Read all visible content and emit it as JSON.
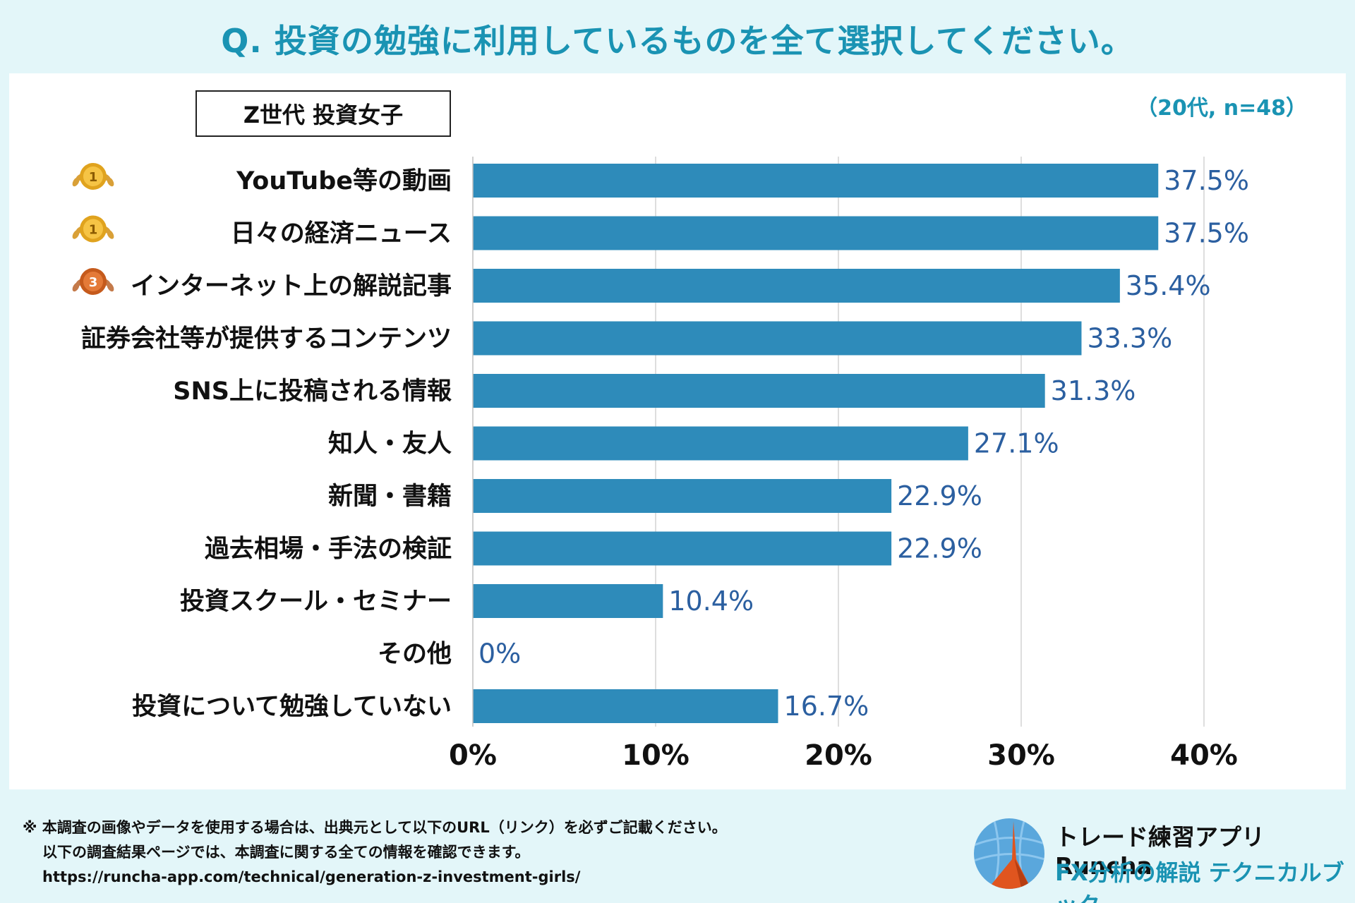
{
  "header": {
    "title": "Q. 投資の勉強に利用しているものを全て選択してください。"
  },
  "group_label": "Z世代 投資女子",
  "sample_note": "（20代, n=48）",
  "medals": [
    {
      "rank_label": "1",
      "category": "YouTube等の動画",
      "color": "gold"
    },
    {
      "rank_label": "1",
      "category": "日々の経済ニュース",
      "color": "gold"
    },
    {
      "rank_label": "3",
      "category": "インターネット上の解説記事",
      "color": "bronze"
    }
  ],
  "chart_data": {
    "type": "bar",
    "orientation": "horizontal",
    "categories": [
      "YouTube等の動画",
      "日々の経済ニュース",
      "インターネット上の解説記事",
      "証券会社等が提供するコンテンツ",
      "SNS上に投稿される情報",
      "知人・友人",
      "新聞・書籍",
      "過去相場・手法の検証",
      "投資スクール・セミナー",
      "その他",
      "投資について勉強していない"
    ],
    "values": [
      37.5,
      37.5,
      35.4,
      33.3,
      31.3,
      27.1,
      22.9,
      22.9,
      10.4,
      0,
      16.7
    ],
    "value_labels": [
      "37.5%",
      "37.5%",
      "35.4%",
      "33.3%",
      "31.3%",
      "27.1%",
      "22.9%",
      "22.9%",
      "10.4%",
      "0%",
      "16.7%"
    ],
    "xlim": [
      0,
      40
    ],
    "xticks": [
      0,
      10,
      20,
      30,
      40
    ],
    "xtick_labels": [
      "0%",
      "10%",
      "20%",
      "30%",
      "40%"
    ],
    "grid": true,
    "bar_color": "#2e8bba",
    "label_color": "#2b5fa0"
  },
  "footer": {
    "line1": "※ 本調査の画像やデータを使用する場合は、出典元として以下のURL（リンク）を必ずご記載ください。",
    "line2": "以下の調査結果ページでは、本調査に関する全ての情報を確認できます。",
    "url": "https://runcha-app.com/technical/generation-z-investment-girls/"
  },
  "brand": {
    "name": "トレード練習アプリ Runcha",
    "subtitle": "FX分析の解説 テクニカルブック"
  }
}
